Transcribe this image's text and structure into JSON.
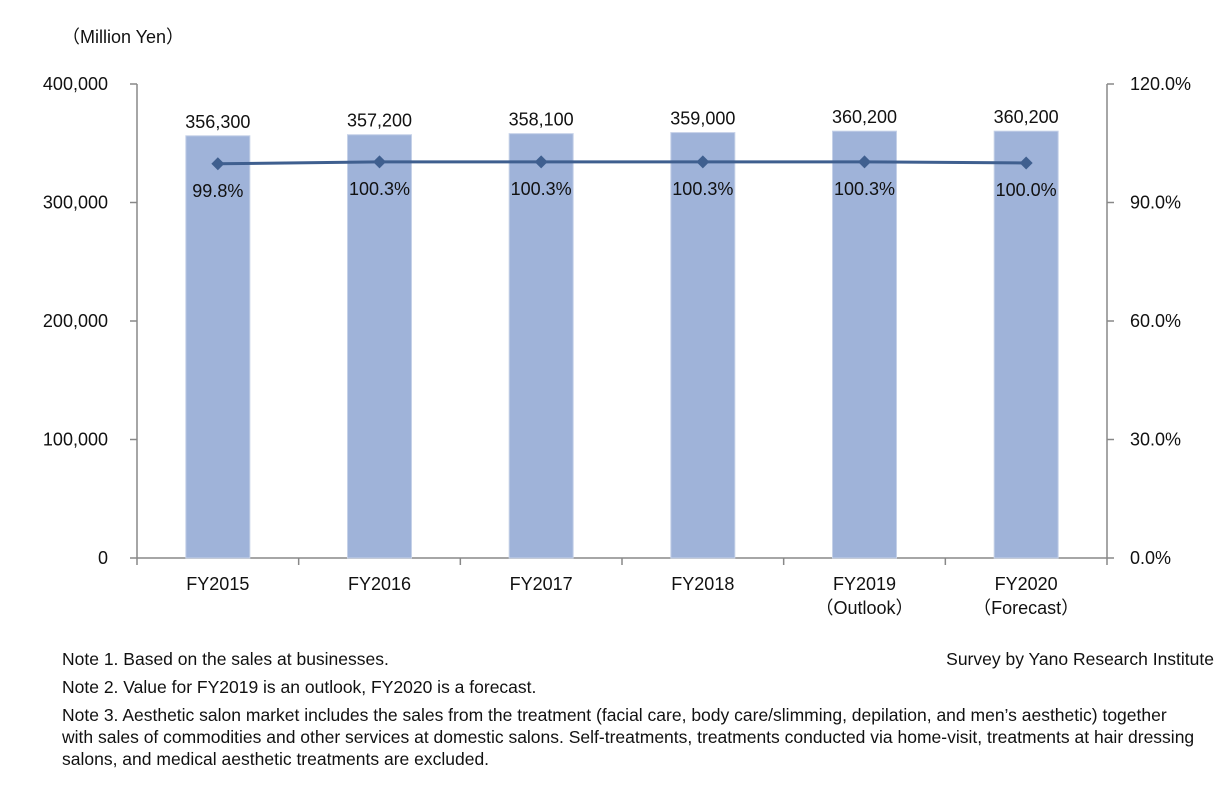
{
  "chart_data": {
    "type": "bar",
    "unit_label": "（Million Yen）",
    "categories": [
      [
        "FY2015"
      ],
      [
        "FY2016"
      ],
      [
        "FY2017"
      ],
      [
        "FY2018"
      ],
      [
        "FY2019",
        "（Outlook）"
      ],
      [
        "FY2020",
        "（Forecast）"
      ]
    ],
    "bars": {
      "values": [
        356300,
        357200,
        358100,
        359000,
        360200,
        360200
      ],
      "labels": [
        "356,300",
        "357,200",
        "358,100",
        "359,000",
        "360,200",
        "360,200"
      ],
      "color": "#9fb3d9"
    },
    "line": {
      "values": [
        99.8,
        100.3,
        100.3,
        100.3,
        100.3,
        100.0
      ],
      "labels": [
        "99.8%",
        "100.3%",
        "100.3%",
        "100.3%",
        "100.3%",
        "100.0%"
      ],
      "color": "#3f5f8f"
    },
    "y_left": {
      "min": 0,
      "max": 400000,
      "ticks": [
        0,
        100000,
        200000,
        300000,
        400000
      ],
      "tick_labels": [
        "0",
        "100,000",
        "200,000",
        "300,000",
        "400,000"
      ]
    },
    "y_right": {
      "min": 0,
      "max": 120,
      "ticks": [
        0,
        30,
        60,
        90,
        120
      ],
      "tick_labels": [
        "0.0%",
        "30.0%",
        "60.0%",
        "90.0%",
        "120.0%"
      ]
    },
    "axis_color": "#888888"
  },
  "notes": [
    "Note 1. Based on the sales at businesses.",
    "Note 2. Value for FY2019 is an outlook, FY2020 is a forecast.",
    "Note 3. Aesthetic salon market includes the sales from the treatment (facial care, body care/slimming, depilation, and men’s aesthetic) together with sales of commodities and other services at domestic salons. Self-treatments, treatments conducted via home-visit, treatments at hair dressing salons, and medical aesthetic treatments are excluded."
  ],
  "credit": "Survey by Yano Research Institute"
}
